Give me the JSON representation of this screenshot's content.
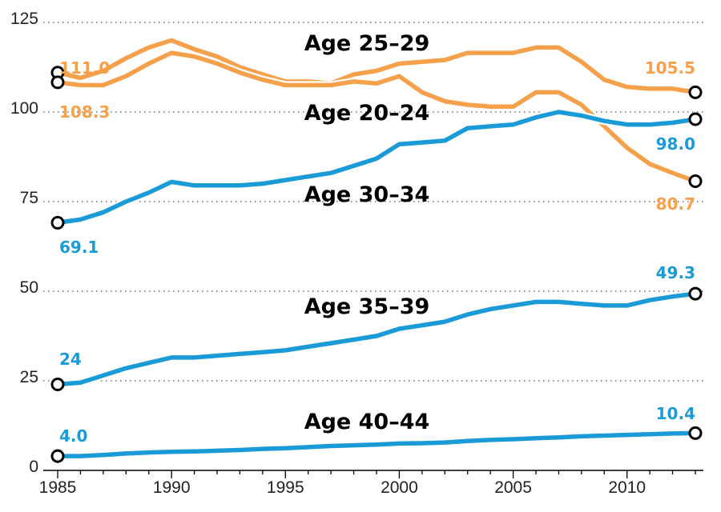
{
  "chart_data": {
    "type": "line",
    "title": "",
    "xlabel": "",
    "ylabel": "",
    "xlim": [
      1985,
      2013
    ],
    "ylim": [
      0,
      125
    ],
    "grid": "horizontal dotted",
    "x_ticks": [
      1985,
      1990,
      1995,
      2000,
      2005,
      2010
    ],
    "x_tick_labels": [
      "1985",
      "1990",
      "1995",
      "2000",
      "2005",
      "2010"
    ],
    "y_ticks": [
      0,
      25,
      50,
      75,
      100,
      125
    ],
    "y_tick_labels": [
      "0",
      "25",
      "50",
      "75",
      "100",
      "125"
    ],
    "colors": {
      "orange": "#F5A04A",
      "blue": "#1A9BD7"
    },
    "x": [
      1985,
      1986,
      1987,
      1988,
      1989,
      1990,
      1991,
      1992,
      1993,
      1994,
      1995,
      1996,
      1997,
      1998,
      1999,
      2000,
      2001,
      2002,
      2003,
      2004,
      2005,
      2006,
      2007,
      2008,
      2009,
      2010,
      2011,
      2012,
      2013
    ],
    "series": [
      {
        "name": "Age 25–29",
        "color": "orange",
        "values": [
          111.0,
          109.5,
          111.5,
          115.0,
          118.0,
          120.0,
          117.5,
          115.5,
          112.5,
          110.5,
          108.5,
          108.5,
          108.0,
          110.5,
          111.5,
          113.5,
          114.0,
          114.5,
          116.5,
          116.5,
          116.5,
          118.0,
          118.0,
          114.0,
          109.0,
          107.0,
          106.5,
          106.5,
          105.5
        ],
        "start_label": "111.0",
        "end_label": "105.5"
      },
      {
        "name": "Age 20–24",
        "color": "orange",
        "values": [
          108.3,
          107.5,
          107.5,
          110.0,
          113.5,
          116.5,
          115.5,
          113.5,
          111.0,
          109.0,
          107.5,
          107.5,
          107.5,
          108.5,
          108.0,
          110.0,
          105.5,
          103.0,
          102.0,
          101.5,
          101.5,
          105.5,
          105.5,
          102.0,
          96.0,
          90.0,
          85.5,
          83.0,
          80.7
        ],
        "start_label": "108.3",
        "end_label": "80.7"
      },
      {
        "name": "Age 30–34",
        "color": "blue",
        "values": [
          69.1,
          70.0,
          72.0,
          75.0,
          77.5,
          80.5,
          79.5,
          79.5,
          79.5,
          80.0,
          81.0,
          82.0,
          83.0,
          85.0,
          87.0,
          91.0,
          91.5,
          92.0,
          95.5,
          96.0,
          96.5,
          98.5,
          100.0,
          99.0,
          97.5,
          96.5,
          96.5,
          97.0,
          98.0
        ],
        "start_label": "69.1",
        "end_label": "98.0"
      },
      {
        "name": "Age 35–39",
        "color": "blue",
        "values": [
          24.0,
          24.5,
          26.5,
          28.5,
          30.0,
          31.5,
          31.5,
          32.0,
          32.5,
          33.0,
          33.5,
          34.5,
          35.5,
          36.5,
          37.5,
          39.5,
          40.5,
          41.5,
          43.5,
          45.0,
          46.0,
          47.0,
          47.0,
          46.5,
          46.0,
          46.0,
          47.5,
          48.5,
          49.3
        ],
        "start_label": "24",
        "end_label": "49.3"
      },
      {
        "name": "Age 40–44",
        "color": "blue",
        "values": [
          4.0,
          4.0,
          4.3,
          4.7,
          5.0,
          5.2,
          5.3,
          5.5,
          5.7,
          6.0,
          6.2,
          6.5,
          6.8,
          7.0,
          7.2,
          7.5,
          7.6,
          7.8,
          8.2,
          8.5,
          8.7,
          9.0,
          9.2,
          9.5,
          9.7,
          9.9,
          10.1,
          10.3,
          10.4
        ],
        "start_label": "4.0",
        "end_label": "10.4"
      }
    ]
  }
}
